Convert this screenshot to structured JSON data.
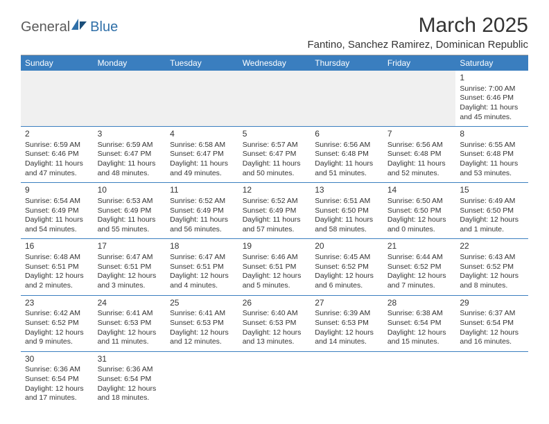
{
  "logo": {
    "text1": "General",
    "text2": "Blue"
  },
  "title": "March 2025",
  "location": "Fantino, Sanchez Ramirez, Dominican Republic",
  "colors": {
    "header_bg": "#3a7ebf",
    "header_text": "#ffffff",
    "rule": "#999999",
    "body_text": "#333333",
    "logo_gray": "#5a5a5a",
    "logo_blue": "#2f6fa8",
    "first_row_bg": "#f0f0f0",
    "border": "#3a7ebf",
    "page_bg": "#ffffff"
  },
  "typography": {
    "title_fontsize": 30,
    "location_fontsize": 15,
    "weekday_fontsize": 12,
    "daynum_fontsize": 12,
    "dayinfo_fontsize": 10.5,
    "font_family": "Arial"
  },
  "weekdays": [
    "Sunday",
    "Monday",
    "Tuesday",
    "Wednesday",
    "Thursday",
    "Friday",
    "Saturday"
  ],
  "weeks": [
    [
      null,
      null,
      null,
      null,
      null,
      null,
      {
        "n": "1",
        "sr": "Sunrise: 7:00 AM",
        "ss": "Sunset: 6:46 PM",
        "d1": "Daylight: 11 hours",
        "d2": "and 45 minutes."
      }
    ],
    [
      {
        "n": "2",
        "sr": "Sunrise: 6:59 AM",
        "ss": "Sunset: 6:46 PM",
        "d1": "Daylight: 11 hours",
        "d2": "and 47 minutes."
      },
      {
        "n": "3",
        "sr": "Sunrise: 6:59 AM",
        "ss": "Sunset: 6:47 PM",
        "d1": "Daylight: 11 hours",
        "d2": "and 48 minutes."
      },
      {
        "n": "4",
        "sr": "Sunrise: 6:58 AM",
        "ss": "Sunset: 6:47 PM",
        "d1": "Daylight: 11 hours",
        "d2": "and 49 minutes."
      },
      {
        "n": "5",
        "sr": "Sunrise: 6:57 AM",
        "ss": "Sunset: 6:47 PM",
        "d1": "Daylight: 11 hours",
        "d2": "and 50 minutes."
      },
      {
        "n": "6",
        "sr": "Sunrise: 6:56 AM",
        "ss": "Sunset: 6:48 PM",
        "d1": "Daylight: 11 hours",
        "d2": "and 51 minutes."
      },
      {
        "n": "7",
        "sr": "Sunrise: 6:56 AM",
        "ss": "Sunset: 6:48 PM",
        "d1": "Daylight: 11 hours",
        "d2": "and 52 minutes."
      },
      {
        "n": "8",
        "sr": "Sunrise: 6:55 AM",
        "ss": "Sunset: 6:48 PM",
        "d1": "Daylight: 11 hours",
        "d2": "and 53 minutes."
      }
    ],
    [
      {
        "n": "9",
        "sr": "Sunrise: 6:54 AM",
        "ss": "Sunset: 6:49 PM",
        "d1": "Daylight: 11 hours",
        "d2": "and 54 minutes."
      },
      {
        "n": "10",
        "sr": "Sunrise: 6:53 AM",
        "ss": "Sunset: 6:49 PM",
        "d1": "Daylight: 11 hours",
        "d2": "and 55 minutes."
      },
      {
        "n": "11",
        "sr": "Sunrise: 6:52 AM",
        "ss": "Sunset: 6:49 PM",
        "d1": "Daylight: 11 hours",
        "d2": "and 56 minutes."
      },
      {
        "n": "12",
        "sr": "Sunrise: 6:52 AM",
        "ss": "Sunset: 6:49 PM",
        "d1": "Daylight: 11 hours",
        "d2": "and 57 minutes."
      },
      {
        "n": "13",
        "sr": "Sunrise: 6:51 AM",
        "ss": "Sunset: 6:50 PM",
        "d1": "Daylight: 11 hours",
        "d2": "and 58 minutes."
      },
      {
        "n": "14",
        "sr": "Sunrise: 6:50 AM",
        "ss": "Sunset: 6:50 PM",
        "d1": "Daylight: 12 hours",
        "d2": "and 0 minutes."
      },
      {
        "n": "15",
        "sr": "Sunrise: 6:49 AM",
        "ss": "Sunset: 6:50 PM",
        "d1": "Daylight: 12 hours",
        "d2": "and 1 minute."
      }
    ],
    [
      {
        "n": "16",
        "sr": "Sunrise: 6:48 AM",
        "ss": "Sunset: 6:51 PM",
        "d1": "Daylight: 12 hours",
        "d2": "and 2 minutes."
      },
      {
        "n": "17",
        "sr": "Sunrise: 6:47 AM",
        "ss": "Sunset: 6:51 PM",
        "d1": "Daylight: 12 hours",
        "d2": "and 3 minutes."
      },
      {
        "n": "18",
        "sr": "Sunrise: 6:47 AM",
        "ss": "Sunset: 6:51 PM",
        "d1": "Daylight: 12 hours",
        "d2": "and 4 minutes."
      },
      {
        "n": "19",
        "sr": "Sunrise: 6:46 AM",
        "ss": "Sunset: 6:51 PM",
        "d1": "Daylight: 12 hours",
        "d2": "and 5 minutes."
      },
      {
        "n": "20",
        "sr": "Sunrise: 6:45 AM",
        "ss": "Sunset: 6:52 PM",
        "d1": "Daylight: 12 hours",
        "d2": "and 6 minutes."
      },
      {
        "n": "21",
        "sr": "Sunrise: 6:44 AM",
        "ss": "Sunset: 6:52 PM",
        "d1": "Daylight: 12 hours",
        "d2": "and 7 minutes."
      },
      {
        "n": "22",
        "sr": "Sunrise: 6:43 AM",
        "ss": "Sunset: 6:52 PM",
        "d1": "Daylight: 12 hours",
        "d2": "and 8 minutes."
      }
    ],
    [
      {
        "n": "23",
        "sr": "Sunrise: 6:42 AM",
        "ss": "Sunset: 6:52 PM",
        "d1": "Daylight: 12 hours",
        "d2": "and 9 minutes."
      },
      {
        "n": "24",
        "sr": "Sunrise: 6:41 AM",
        "ss": "Sunset: 6:53 PM",
        "d1": "Daylight: 12 hours",
        "d2": "and 11 minutes."
      },
      {
        "n": "25",
        "sr": "Sunrise: 6:41 AM",
        "ss": "Sunset: 6:53 PM",
        "d1": "Daylight: 12 hours",
        "d2": "and 12 minutes."
      },
      {
        "n": "26",
        "sr": "Sunrise: 6:40 AM",
        "ss": "Sunset: 6:53 PM",
        "d1": "Daylight: 12 hours",
        "d2": "and 13 minutes."
      },
      {
        "n": "27",
        "sr": "Sunrise: 6:39 AM",
        "ss": "Sunset: 6:53 PM",
        "d1": "Daylight: 12 hours",
        "d2": "and 14 minutes."
      },
      {
        "n": "28",
        "sr": "Sunrise: 6:38 AM",
        "ss": "Sunset: 6:54 PM",
        "d1": "Daylight: 12 hours",
        "d2": "and 15 minutes."
      },
      {
        "n": "29",
        "sr": "Sunrise: 6:37 AM",
        "ss": "Sunset: 6:54 PM",
        "d1": "Daylight: 12 hours",
        "d2": "and 16 minutes."
      }
    ],
    [
      {
        "n": "30",
        "sr": "Sunrise: 6:36 AM",
        "ss": "Sunset: 6:54 PM",
        "d1": "Daylight: 12 hours",
        "d2": "and 17 minutes."
      },
      {
        "n": "31",
        "sr": "Sunrise: 6:36 AM",
        "ss": "Sunset: 6:54 PM",
        "d1": "Daylight: 12 hours",
        "d2": "and 18 minutes."
      },
      null,
      null,
      null,
      null,
      null
    ]
  ]
}
